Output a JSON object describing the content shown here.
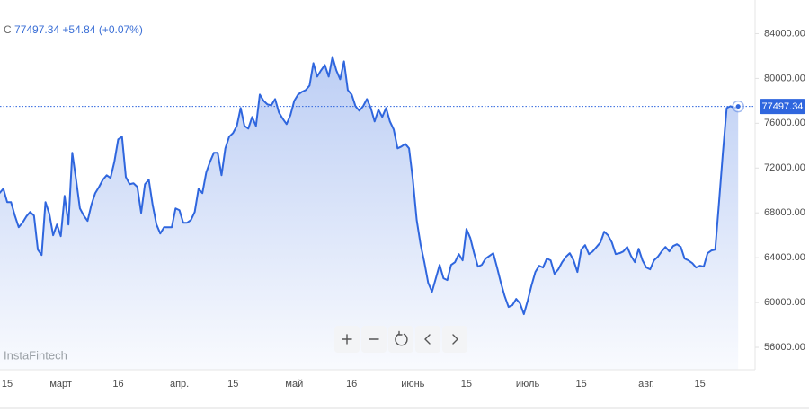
{
  "header": {
    "symbol": "C",
    "change": "+54.84",
    "change_percent": "(+0.07%)",
    "watermark": "InstaFintech"
  },
  "chart_data": {
    "type": "area",
    "color": "#2f66de",
    "grid": false,
    "ylim": [
      54000,
      87000
    ],
    "yticks": [
      {
        "value": 56000,
        "label": "56000.00"
      },
      {
        "value": 60000,
        "label": "60000.00"
      },
      {
        "value": 64000,
        "label": "64000.00"
      },
      {
        "value": 68000,
        "label": "68000.00"
      },
      {
        "value": 72000,
        "label": "72000.00"
      },
      {
        "value": 76000,
        "label": "76000.00"
      },
      {
        "value": 80000,
        "label": "80000.00"
      },
      {
        "value": 84000,
        "label": "84000.00"
      }
    ],
    "categories": [
      null,
      null,
      "15",
      null,
      null,
      null,
      null,
      null,
      null,
      null,
      null,
      null,
      null,
      null,
      null,
      null,
      "март",
      null,
      null,
      null,
      null,
      null,
      null,
      null,
      null,
      null,
      null,
      null,
      null,
      null,
      null,
      "16",
      null,
      null,
      null,
      null,
      null,
      null,
      null,
      null,
      null,
      null,
      null,
      null,
      null,
      null,
      null,
      "апр.",
      null,
      null,
      null,
      null,
      null,
      null,
      null,
      null,
      null,
      null,
      null,
      null,
      null,
      "15",
      null,
      null,
      null,
      null,
      null,
      null,
      null,
      null,
      null,
      null,
      null,
      null,
      null,
      null,
      null,
      "май",
      null,
      null,
      null,
      null,
      null,
      null,
      null,
      null,
      null,
      null,
      null,
      null,
      null,
      null,
      "16",
      null,
      null,
      null,
      null,
      null,
      null,
      null,
      null,
      null,
      null,
      null,
      null,
      null,
      null,
      null,
      "июнь",
      null,
      null,
      null,
      null,
      null,
      null,
      null,
      null,
      null,
      null,
      null,
      null,
      null,
      "15",
      null,
      null,
      null,
      null,
      null,
      null,
      null,
      null,
      null,
      null,
      null,
      null,
      null,
      null,
      null,
      "июль",
      null,
      null,
      null,
      null,
      null,
      null,
      null,
      null,
      null,
      null,
      null,
      null,
      null,
      "15",
      null,
      null,
      null,
      null,
      null,
      null,
      null,
      null,
      null,
      null,
      null,
      null,
      null,
      null,
      null,
      null,
      "авг.",
      null,
      null,
      null,
      null,
      null,
      null,
      null,
      null,
      null,
      null,
      null,
      null,
      null,
      "15",
      null,
      null,
      null,
      null,
      null,
      null,
      null,
      null,
      null,
      null
    ],
    "values": [
      69760,
      70160,
      68960,
      68960,
      67760,
      66720,
      67120,
      67680,
      68080,
      67760,
      64720,
      64240,
      68960,
      67920,
      66000,
      66960,
      65920,
      69520,
      66960,
      73360,
      70960,
      68400,
      67760,
      67280,
      68720,
      69760,
      70320,
      70960,
      71360,
      71120,
      72560,
      74560,
      74800,
      71200,
      70560,
      70640,
      70320,
      68000,
      70560,
      70960,
      68720,
      66960,
      66160,
      66720,
      66720,
      66720,
      68400,
      68240,
      67120,
      67120,
      67360,
      68080,
      70160,
      69760,
      71600,
      72560,
      73360,
      73360,
      71360,
      73760,
      74800,
      75120,
      75760,
      77360,
      75760,
      75520,
      76560,
      75760,
      78560,
      78000,
      77680,
      77600,
      78160,
      76960,
      76400,
      75920,
      76720,
      78000,
      78560,
      78800,
      78960,
      79360,
      81360,
      80160,
      80720,
      81200,
      80160,
      81920,
      80720,
      79920,
      81520,
      78960,
      78560,
      77520,
      77120,
      77520,
      78160,
      77360,
      76160,
      77200,
      76560,
      77360,
      76160,
      75440,
      73760,
      73920,
      74160,
      73760,
      70960,
      67360,
      65200,
      63600,
      61760,
      60960,
      62160,
      63360,
      62160,
      62000,
      63360,
      63600,
      64320,
      63760,
      66560,
      65760,
      64400,
      63200,
      63360,
      63920,
      64160,
      64400,
      63120,
      61760,
      60560,
      59600,
      59760,
      60320,
      59920,
      58960,
      60160,
      61520,
      62720,
      63280,
      63120,
      63920,
      63760,
      62560,
      62960,
      63600,
      64080,
      64400,
      63760,
      62720,
      64720,
      65120,
      64320,
      64560,
      64960,
      65360,
      66320,
      66000,
      65360,
      64320,
      64400,
      64560,
      64960,
      64160,
      63600,
      64800,
      63760,
      63120,
      62960,
      63760,
      64080,
      64560,
      64960,
      64560,
      65040,
      65200,
      64960,
      63920,
      63760,
      63520,
      63120,
      63280,
      63200,
      64400,
      64640,
      64720,
      68960,
      73360,
      77360,
      77520,
      77360,
      77497.34
    ]
  }
}
